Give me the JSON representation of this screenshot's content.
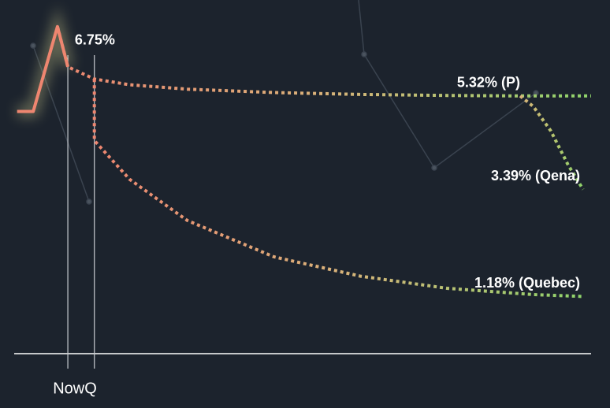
{
  "chart_data": {
    "type": "line",
    "xlim": [
      0,
      100
    ],
    "ylim": [
      0,
      7.3
    ],
    "xlabel": "NowQ",
    "markers": [
      9.3,
      13.9
    ],
    "series": [
      {
        "style": "solid",
        "color": "#ee8670",
        "x": [
          0.5,
          3.3,
          7.5,
          9.3
        ],
        "values": [
          5.0,
          5.0,
          6.75,
          5.92
        ],
        "value_labels": [
          null,
          null,
          "6.75%",
          null
        ]
      },
      {
        "style": "dotted",
        "colors": [
          "#ee8670",
          "#d9b37a",
          "#8fd46b"
        ],
        "x": [
          7.5,
          9.3,
          13.9,
          20,
          30,
          45,
          60,
          75,
          87.7,
          100
        ],
        "values": [
          6.75,
          5.92,
          5.67,
          5.55,
          5.46,
          5.39,
          5.35,
          5.33,
          5.32,
          5.32
        ],
        "value_labels": [
          null,
          null,
          null,
          null,
          null,
          null,
          null,
          null,
          "5.32% (P)",
          null
        ]
      },
      {
        "style": "dotted",
        "colors": [
          "#d9b37a",
          "#b8c46f",
          "#8fd46b"
        ],
        "x": [
          87.7,
          90,
          93,
          96,
          98.6
        ],
        "values": [
          5.32,
          5.1,
          4.6,
          3.9,
          3.39
        ],
        "value_labels": [
          null,
          null,
          null,
          null,
          "3.39% (Qena)"
        ]
      },
      {
        "style": "dotted",
        "colors": [
          "#ee8670",
          "#d9b37a",
          "#8fd46b"
        ],
        "x": [
          13.9,
          13.9,
          20,
          30,
          45,
          60,
          75,
          90,
          98.6
        ],
        "values": [
          5.67,
          4.4,
          3.6,
          2.75,
          2.0,
          1.6,
          1.35,
          1.22,
          1.18
        ],
        "value_labels": [
          null,
          null,
          null,
          null,
          null,
          null,
          null,
          null,
          "1.18% (Quebec)"
        ]
      }
    ]
  }
}
